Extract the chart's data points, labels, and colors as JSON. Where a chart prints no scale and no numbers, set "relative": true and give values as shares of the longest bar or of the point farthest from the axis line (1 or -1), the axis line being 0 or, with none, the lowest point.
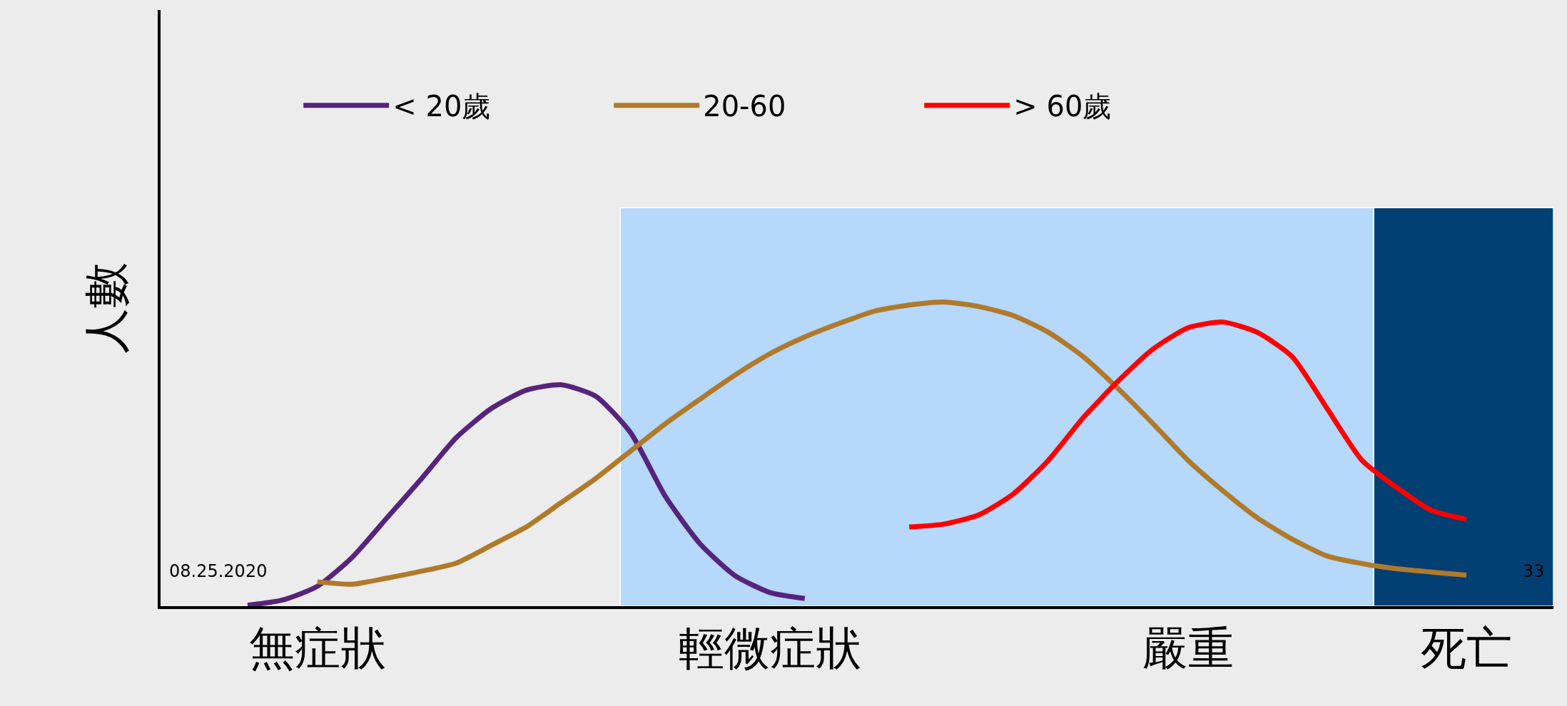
{
  "chart_data": {
    "type": "line",
    "relative": true,
    "ylabel": "人數",
    "categories": [
      null,
      null,
      null,
      null,
      "無症狀",
      null,
      null,
      null,
      null,
      null,
      null,
      null,
      null,
      null,
      null,
      null,
      null,
      "輕微症狀",
      null,
      null,
      null,
      null,
      null,
      null,
      null,
      null,
      null,
      null,
      null,
      "嚴重",
      null,
      null,
      null,
      null,
      null,
      null,
      null,
      "死亡",
      null,
      null
    ],
    "grid": false,
    "legend": "top",
    "series": [
      {
        "name": "< 20歲",
        "color": "#56237d",
        "values": [
          null,
          null,
          0.003,
          0.02,
          0.065,
          0.16,
          0.29,
          0.42,
          0.555,
          0.65,
          0.71,
          0.728,
          0.69,
          0.57,
          0.36,
          0.204,
          0.1,
          0.045,
          0.025,
          null,
          null,
          null,
          null,
          null,
          null,
          null,
          null,
          null,
          null,
          null,
          null,
          null,
          null,
          null,
          null,
          null,
          null,
          null,
          null,
          null
        ]
      },
      {
        "name": "20-60",
        "color": "#b07a2a",
        "values": [
          null,
          null,
          null,
          null,
          0.08,
          0.072,
          0.092,
          0.115,
          0.142,
          0.2,
          0.26,
          0.34,
          0.42,
          0.51,
          0.6,
          0.681,
          0.76,
          0.83,
          0.885,
          0.93,
          0.97,
          0.99,
          1,
          0.985,
          0.955,
          0.9,
          0.82,
          0.715,
          0.6,
          0.48,
          0.38,
          0.29,
          0.22,
          0.165,
          0.14,
          0.123,
          0.112,
          0.102,
          null,
          null
        ]
      },
      {
        "name": "> 60歲",
        "color": "#ff0000",
        "values": [
          null,
          null,
          null,
          null,
          null,
          null,
          null,
          null,
          null,
          null,
          null,
          null,
          null,
          null,
          null,
          null,
          null,
          null,
          null,
          null,
          null,
          0.26,
          0.27,
          0.3,
          0.37,
          0.48,
          0.62,
          0.74,
          0.845,
          0.915,
          0.934,
          0.9,
          0.82,
          0.65,
          0.48,
          0.39,
          0.315,
          0.285,
          null,
          null
        ]
      }
    ],
    "annotations": [
      "08.25.2020",
      "33"
    ]
  }
}
